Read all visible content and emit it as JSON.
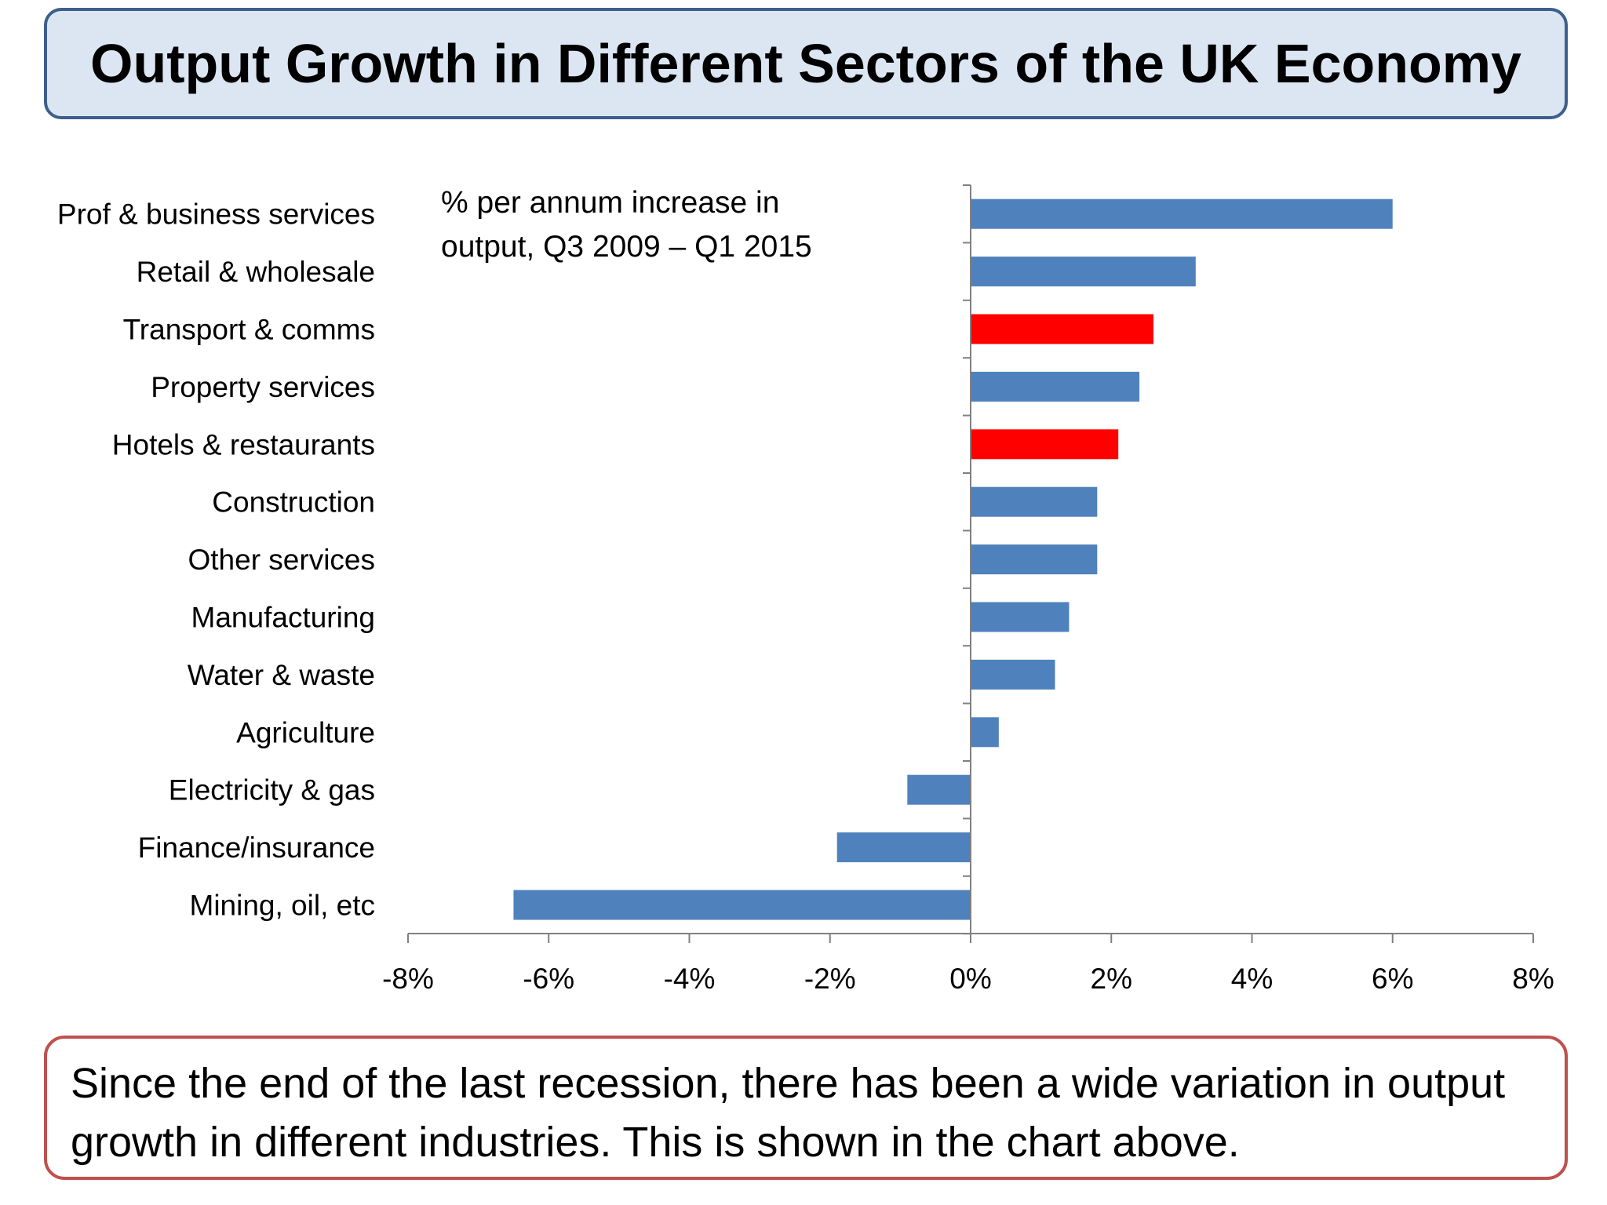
{
  "title": "Output Growth in Different Sectors of the UK Economy",
  "footnote": "Since the end of the last recession, there has been a wide variation in output growth in different industries. This is shown in the chart above.",
  "colors": {
    "default_bar": "#4f81bd",
    "highlight_bar": "#ff0000"
  },
  "chart_data": {
    "type": "bar",
    "orientation": "horizontal",
    "annotation": "% per annum increase in output, Q3 2009 – Q1 2015",
    "annotation_lines": [
      "% per annum increase in",
      "output, Q3 2009 – Q1 2015"
    ],
    "categories": [
      "Prof & business services",
      "Retail & wholesale",
      "Transport & comms",
      "Property services",
      "Hotels & restaurants",
      "Construction",
      "Other services",
      "Manufacturing",
      "Water & waste",
      "Agriculture",
      "Electricity & gas",
      "Finance/insurance",
      "Mining, oil, etc"
    ],
    "values": [
      6.0,
      3.2,
      2.6,
      2.4,
      2.1,
      1.8,
      1.8,
      1.4,
      1.2,
      0.4,
      -0.9,
      -1.9,
      -6.5
    ],
    "highlighted": [
      "Transport & comms",
      "Hotels & restaurants"
    ],
    "xlim": [
      -8,
      8
    ],
    "xticks": [
      -8,
      -6,
      -4,
      -2,
      0,
      2,
      4,
      6,
      8
    ],
    "xtick_labels": [
      "-8%",
      "-6%",
      "-4%",
      "-2%",
      "0%",
      "2%",
      "4%",
      "6%",
      "8%"
    ],
    "grid": false,
    "legend": "none"
  }
}
